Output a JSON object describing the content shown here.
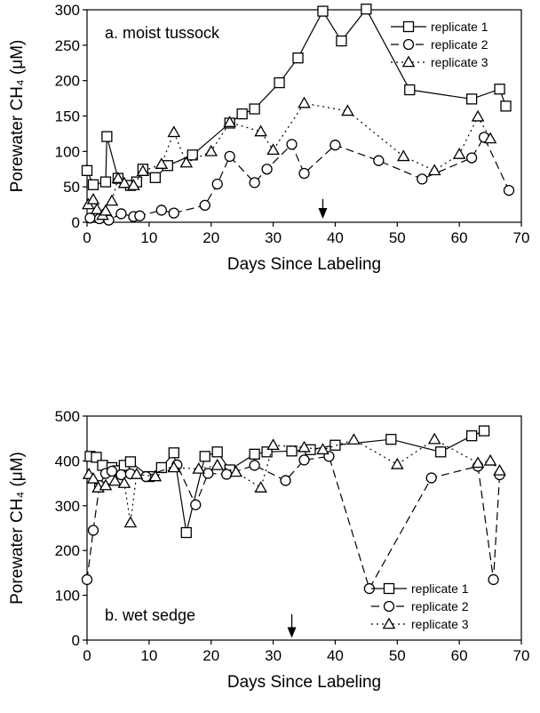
{
  "chart_data": [
    {
      "type": "line",
      "panel_label": "a. moist tussock",
      "xlabel": "Days Since Labeling",
      "ylabel": "Porewater CH₄ (μM)",
      "xlim": [
        0,
        70
      ],
      "ylim": [
        0,
        300
      ],
      "xticks": [
        0,
        10,
        20,
        30,
        40,
        50,
        60,
        70
      ],
      "yticks": [
        0,
        50,
        100,
        150,
        200,
        250,
        300
      ],
      "legend_position": "top-right",
      "arrow_day": 38,
      "series": [
        {
          "name": "replicate 1",
          "marker": "square",
          "dash": "solid",
          "x": [
            0,
            1,
            3,
            3.2,
            5,
            7,
            8,
            9,
            11,
            13,
            17,
            23,
            25,
            27,
            31,
            34,
            38,
            41,
            45,
            52,
            62,
            66.5,
            67.5
          ],
          "y": [
            73,
            53,
            57,
            121,
            62,
            52,
            57,
            75,
            63,
            80,
            95,
            140,
            153,
            160,
            197,
            232,
            298,
            256,
            301,
            187,
            174,
            188,
            164
          ]
        },
        {
          "name": "replicate 2",
          "marker": "circle",
          "dash": "dash",
          "x": [
            0.5,
            2,
            3.5,
            5.5,
            7.5,
            8.5,
            12,
            14,
            19,
            21,
            23,
            27,
            29,
            33,
            35,
            40,
            47,
            54,
            62,
            64,
            68
          ],
          "y": [
            6,
            5,
            3,
            12,
            8,
            9,
            17,
            13,
            24,
            54,
            93,
            56,
            75,
            110,
            69,
            109,
            87,
            61,
            91,
            120,
            45
          ]
        },
        {
          "name": "replicate 3",
          "marker": "triangle",
          "dash": "dot",
          "x": [
            0.2,
            1,
            1.6,
            2.5,
            3,
            4,
            5,
            6,
            7.5,
            9,
            12,
            14,
            16,
            20,
            23,
            28,
            30,
            35,
            42,
            51,
            56,
            60,
            63,
            65
          ],
          "y": [
            25,
            32,
            18,
            10,
            16,
            30,
            62,
            55,
            52,
            72,
            82,
            127,
            84,
            100,
            141,
            128,
            102,
            168,
            157,
            93,
            73,
            96,
            149,
            118
          ]
        }
      ]
    },
    {
      "type": "line",
      "panel_label": "b. wet sedge",
      "xlabel": "Days Since Labeling",
      "ylabel": "Porewater CH₄ (μM)",
      "xlim": [
        0,
        70
      ],
      "ylim": [
        0,
        500
      ],
      "xticks": [
        0,
        10,
        20,
        30,
        40,
        50,
        60,
        70
      ],
      "yticks": [
        0,
        100,
        200,
        300,
        400,
        500
      ],
      "legend_position": "bottom-right",
      "arrow_day": 33,
      "series": [
        {
          "name": "replicate 1",
          "marker": "square",
          "dash": "solid",
          "x": [
            0.5,
            1.5,
            2.5,
            4,
            5,
            6,
            7,
            10,
            12,
            14,
            16,
            19,
            21,
            23,
            27,
            29,
            33,
            36,
            40,
            49,
            57,
            62,
            64
          ],
          "y": [
            410,
            408,
            390,
            385,
            378,
            390,
            398,
            365,
            385,
            418,
            240,
            410,
            420,
            380,
            415,
            420,
            422,
            425,
            435,
            448,
            420,
            456,
            467
          ]
        },
        {
          "name": "replicate 2",
          "marker": "circle",
          "dash": "dash",
          "x": [
            0,
            1,
            2,
            3,
            4,
            5.5,
            7,
            9.5,
            14.5,
            17.5,
            19.5,
            22.5,
            27,
            32,
            35,
            39,
            45.5,
            55.5,
            63,
            65.5,
            66.5
          ],
          "y": [
            135,
            245,
            345,
            372,
            377,
            369,
            371,
            365,
            391,
            302,
            372,
            370,
            390,
            356,
            402,
            410,
            115,
            362,
            388,
            135,
            369
          ]
        },
        {
          "name": "replicate 3",
          "marker": "triangle",
          "dash": "dot",
          "x": [
            0.3,
            1,
            1.8,
            3,
            4.5,
            6,
            7,
            8,
            11,
            14,
            18,
            21,
            24,
            28,
            30,
            35,
            38,
            43,
            50,
            56,
            63,
            65,
            66.5
          ],
          "y": [
            370,
            360,
            340,
            345,
            355,
            350,
            262,
            370,
            365,
            385,
            382,
            390,
            375,
            340,
            435,
            430,
            425,
            447,
            392,
            448,
            395,
            400,
            378
          ]
        }
      ]
    }
  ]
}
